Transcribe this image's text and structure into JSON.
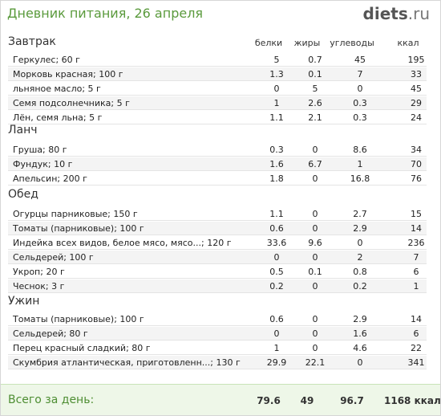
{
  "header": {
    "title": "Дневник питания, 26 апреля",
    "logo_main": "diets",
    "logo_tld": ".ru"
  },
  "columns": [
    "белки",
    "жиры",
    "углеводы",
    "ккал"
  ],
  "sections": [
    {
      "title": "Завтрак",
      "rows": [
        {
          "name": "Геркулес; 60 г",
          "protein": "5",
          "fat": "0.7",
          "carbs": "45",
          "kcal": "195"
        },
        {
          "name": "Морковь красная; 100 г",
          "protein": "1.3",
          "fat": "0.1",
          "carbs": "7",
          "kcal": "33"
        },
        {
          "name": "льняное масло; 5 г",
          "protein": "0",
          "fat": "5",
          "carbs": "0",
          "kcal": "45"
        },
        {
          "name": "Семя подсолнечника; 5 г",
          "protein": "1",
          "fat": "2.6",
          "carbs": "0.3",
          "kcal": "29"
        },
        {
          "name": "Лён, семя льна; 5 г",
          "protein": "1.1",
          "fat": "2.1",
          "carbs": "0.3",
          "kcal": "24"
        }
      ]
    },
    {
      "title": "Ланч",
      "rows": [
        {
          "name": "Груша; 80 г",
          "protein": "0.3",
          "fat": "0",
          "carbs": "8.6",
          "kcal": "34"
        },
        {
          "name": "Фундук; 10 г",
          "protein": "1.6",
          "fat": "6.7",
          "carbs": "1",
          "kcal": "70"
        },
        {
          "name": "Апельсин; 200 г",
          "protein": "1.8",
          "fat": "0",
          "carbs": "16.8",
          "kcal": "76"
        }
      ]
    },
    {
      "title": "Обед",
      "rows": [
        {
          "name": "Огурцы парниковые; 150 г",
          "protein": "1.1",
          "fat": "0",
          "carbs": "2.7",
          "kcal": "15"
        },
        {
          "name": "Томаты (парниковые); 100 г",
          "protein": "0.6",
          "fat": "0",
          "carbs": "2.9",
          "kcal": "14"
        },
        {
          "name": "Индейка всех видов, белое мясо, мясо...; 120 г",
          "protein": "33.6",
          "fat": "9.6",
          "carbs": "0",
          "kcal": "236"
        },
        {
          "name": "Сельдерей; 100 г",
          "protein": "0",
          "fat": "0",
          "carbs": "2",
          "kcal": "7"
        },
        {
          "name": "Укроп; 20 г",
          "protein": "0.5",
          "fat": "0.1",
          "carbs": "0.8",
          "kcal": "6"
        },
        {
          "name": "Чеснок; 3 г",
          "protein": "0.2",
          "fat": "0",
          "carbs": "0.2",
          "kcal": "1"
        }
      ]
    },
    {
      "title": "Ужин",
      "rows": [
        {
          "name": "Томаты (парниковые); 100 г",
          "protein": "0.6",
          "fat": "0",
          "carbs": "2.9",
          "kcal": "14"
        },
        {
          "name": "Сельдерей; 80 г",
          "protein": "0",
          "fat": "0",
          "carbs": "1.6",
          "kcal": "6"
        },
        {
          "name": "Перец красный сладкий; 80 г",
          "protein": "1",
          "fat": "0",
          "carbs": "4.6",
          "kcal": "22"
        },
        {
          "name": "Скумбрия атлантическая, приготовленн...; 130 г",
          "protein": "29.9",
          "fat": "22.1",
          "carbs": "0",
          "kcal": "341"
        }
      ]
    }
  ],
  "total": {
    "label": "Всего за день:",
    "protein": "79.6",
    "fat": "49",
    "carbs": "96.7",
    "kcal": "1168 ккал"
  },
  "colors": {
    "title_green": "#5a9a3c",
    "total_bg": "#eef7e8",
    "row_alt": "#f4f4f4"
  }
}
